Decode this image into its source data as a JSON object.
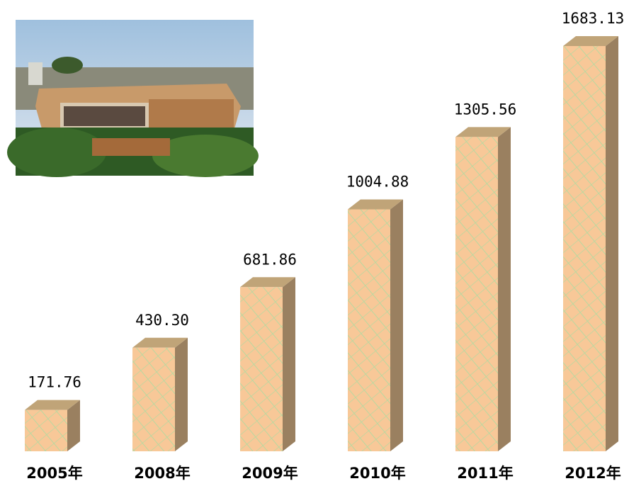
{
  "chart_data": {
    "type": "bar3d",
    "categories": [
      "2005年",
      "2008年",
      "2009年",
      "2010年",
      "2011年",
      "2012年"
    ],
    "values": [
      171.76,
      430.3,
      681.86,
      1004.88,
      1305.56,
      1683.13
    ],
    "value_labels": [
      "171.76",
      "430.30",
      "681.86",
      "1004.88",
      "1305.56",
      "1683.13"
    ],
    "color": "#f8c898"
  }
}
